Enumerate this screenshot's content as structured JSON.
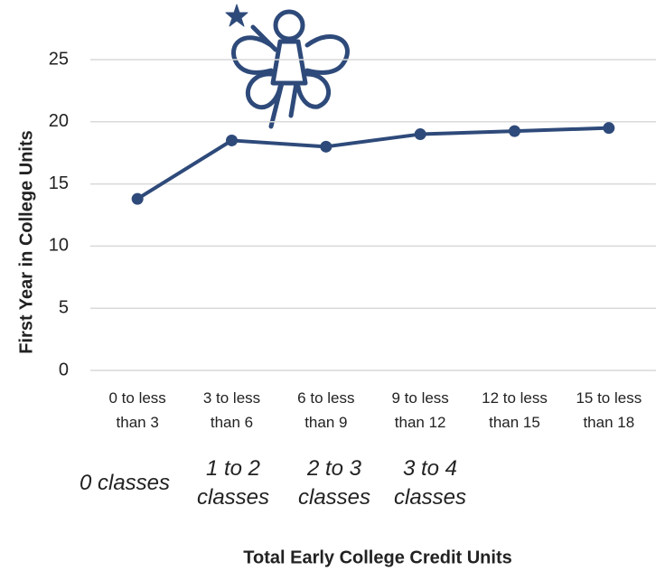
{
  "chart_data": {
    "type": "line",
    "y_label": "First Year in College Units",
    "x_label": "Total Early College Credit Units",
    "categories": [
      "0 to less than 3",
      "3 to less than 6",
      "6 to less than 9",
      "9 to less than 12",
      "12 to less than 15",
      "15 to less than 18"
    ],
    "values": [
      13.8,
      18.5,
      18.0,
      19.0,
      19.25,
      19.5
    ],
    "color": "#2e4a7a",
    "ylim": [
      0,
      30
    ],
    "yticks": [
      0,
      5,
      10,
      15,
      20,
      25
    ],
    "grid": true,
    "annotations": [
      "0 classes",
      "1 to 2 classes",
      "2 to 3 classes",
      "3 to 4 classes"
    ]
  }
}
